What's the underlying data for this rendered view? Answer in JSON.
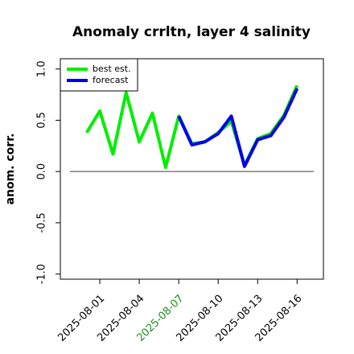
{
  "chart_data": {
    "type": "line",
    "title": "Anomaly crrltn, layer 4 salinity",
    "y_label": "anom. corr.",
    "x": [
      "2025-07-31",
      "2025-08-01",
      "2025-08-02",
      "2025-08-03",
      "2025-08-04",
      "2025-08-05",
      "2025-08-06",
      "2025-08-07",
      "2025-08-08",
      "2025-08-09",
      "2025-08-10",
      "2025-08-11",
      "2025-08-12",
      "2025-08-13",
      "2025-08-14",
      "2025-08-15",
      "2025-08-16"
    ],
    "series": [
      {
        "name": "best est.",
        "color": "#00ee00",
        "values": [
          0.38,
          0.59,
          0.17,
          0.77,
          0.29,
          0.57,
          0.04,
          0.54,
          0.27,
          0.29,
          0.38,
          0.49,
          0.06,
          0.32,
          0.37,
          0.55,
          0.84
        ]
      },
      {
        "name": "forecast",
        "color": "#0000ee",
        "values": [
          null,
          null,
          null,
          null,
          null,
          null,
          null,
          0.54,
          0.26,
          0.29,
          0.37,
          0.54,
          0.05,
          0.31,
          0.35,
          0.53,
          0.81
        ]
      }
    ],
    "xlim": [
      "2025-07-29",
      "2025-08-18"
    ],
    "xticks": [
      "2025-08-01",
      "2025-08-04",
      "2025-08-07",
      "2025-08-10",
      "2025-08-13",
      "2025-08-16"
    ],
    "highlight_xtick": "2025-08-07",
    "highlight_color": "#228b22",
    "ylim": [
      -1.05,
      1.1
    ],
    "yticks": [
      {
        "value": -1,
        "label": "-1.0"
      },
      -0.5,
      {
        "value": 0,
        "label": "0.0"
      },
      0.5,
      {
        "value": 1,
        "label": "1.0"
      }
    ],
    "reference_line": 0,
    "legend": "upper left"
  }
}
